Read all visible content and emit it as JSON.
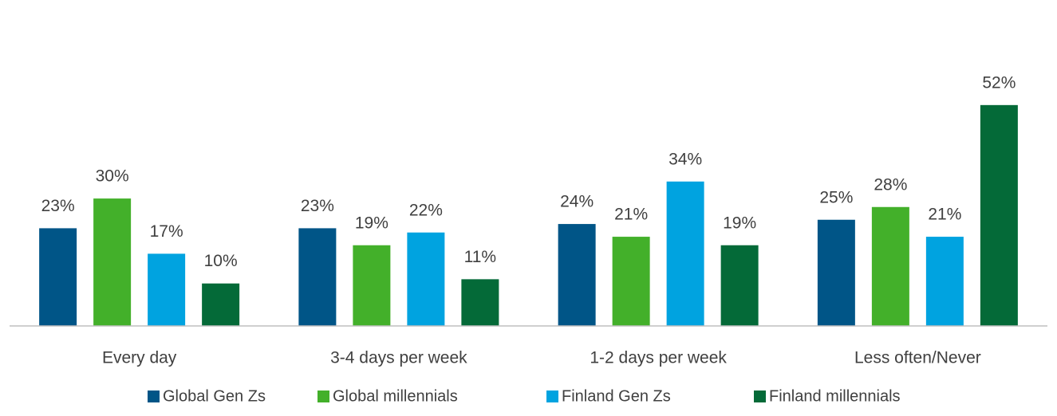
{
  "chart_data": {
    "type": "bar",
    "categories": [
      "Every day",
      "3-4 days per week",
      "1-2 days per week",
      "Less often/Never"
    ],
    "series": [
      {
        "name": "Global Gen Zs",
        "color": "#005587",
        "values": [
          23,
          23,
          24,
          25
        ],
        "value_labels": [
          "23%",
          "23%",
          "24%",
          "25%"
        ]
      },
      {
        "name": "Global millennials",
        "color": "#43b02a",
        "values": [
          30,
          19,
          21,
          28
        ],
        "value_labels": [
          "30%",
          "19%",
          "21%",
          "28%"
        ]
      },
      {
        "name": "Finland Gen Zs",
        "color": "#00a3e0",
        "values": [
          17,
          22,
          34,
          21
        ],
        "value_labels": [
          "17%",
          "22%",
          "34%",
          "21%"
        ]
      },
      {
        "name": "Finland millennials",
        "color": "#046a38",
        "values": [
          10,
          11,
          19,
          52
        ],
        "value_labels": [
          "10%",
          "11%",
          "19%",
          "52%"
        ]
      }
    ],
    "legend": "bottom"
  }
}
